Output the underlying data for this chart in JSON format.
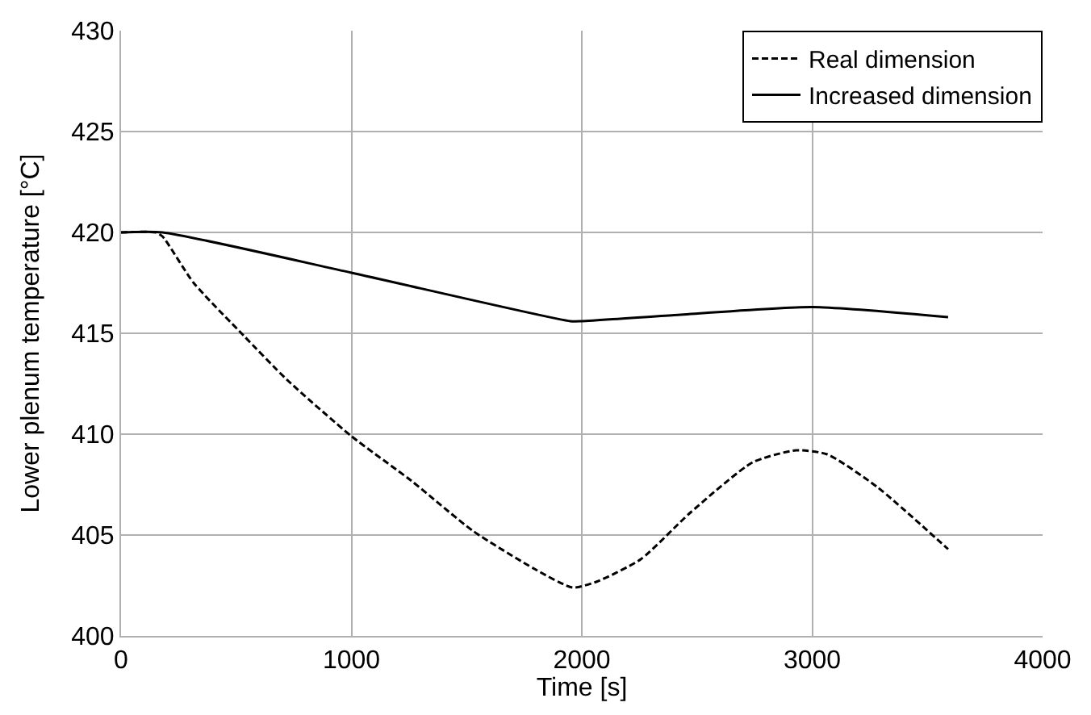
{
  "chart_data": {
    "type": "line",
    "xlabel": "Time [s]",
    "ylabel": "Lower plenum temperature [°C]",
    "xlim": [
      0,
      4000
    ],
    "ylim": [
      400,
      430
    ],
    "xticks": [
      0,
      1000,
      2000,
      3000,
      4000
    ],
    "yticks": [
      400,
      405,
      410,
      415,
      420,
      425,
      430
    ],
    "grid": true,
    "legend": "top right",
    "marker": "none",
    "series": [
      {
        "name": "Real dimension",
        "color": "#000000",
        "line_style": "dashed",
        "x": [
          0,
          150,
          180,
          315,
          531,
          720,
          1000,
          1259,
          1528,
          1798,
          1960,
          2067,
          2256,
          2470,
          2741,
          2930,
          3065,
          3280,
          3590
        ],
        "values": [
          420,
          420,
          419.8,
          417.5,
          414.9,
          412.7,
          409.9,
          407.7,
          405.2,
          403.3,
          402.4,
          402.7,
          403.8,
          406.1,
          408.6,
          409.2,
          409.0,
          407.4,
          404.3
        ]
      },
      {
        "name": "Increased dimension",
        "color": "#000000",
        "line_style": "solid",
        "x": [
          0,
          180,
          1000,
          1950,
          2000,
          2400,
          3000,
          3590
        ],
        "values": [
          420,
          420,
          418.0,
          415.6,
          415.6,
          415.9,
          416.3,
          415.8
        ]
      }
    ]
  }
}
